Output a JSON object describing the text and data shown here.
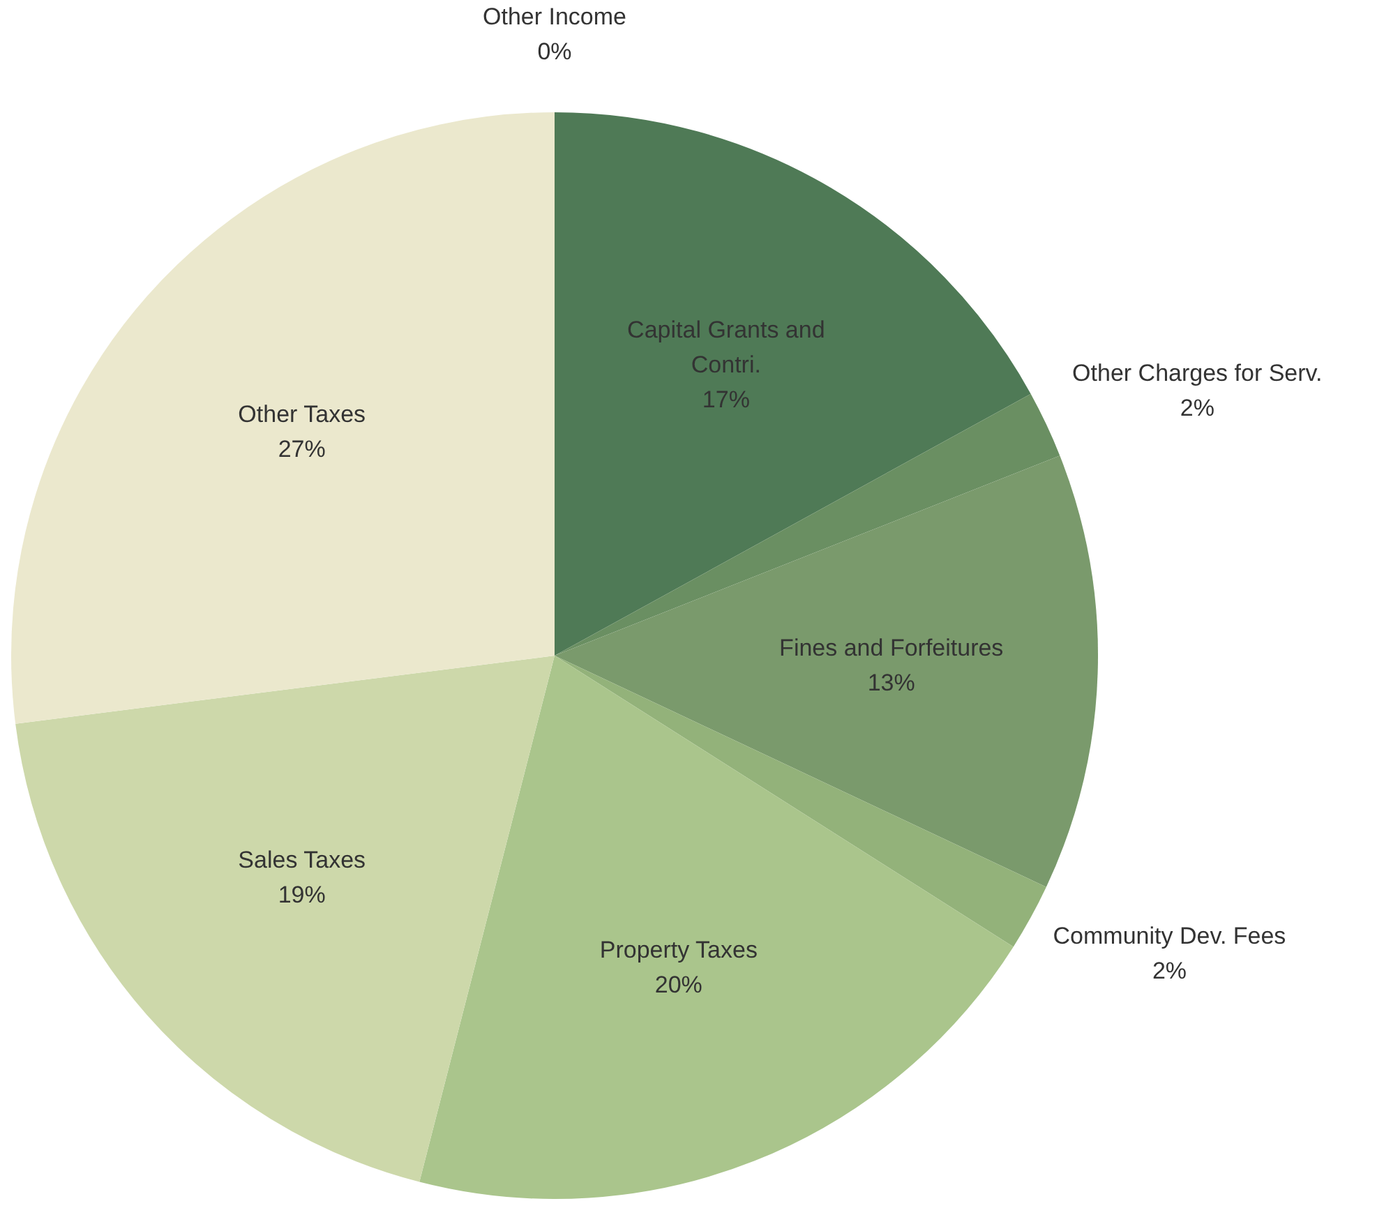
{
  "chart_data": {
    "type": "pie",
    "categories": [
      "Capital Grants and Contri.",
      "Other Charges for Serv.",
      "Fines and Forfeitures",
      "Community Dev. Fees",
      "Property Taxes",
      "Sales Taxes",
      "Other Taxes",
      "Other Income"
    ],
    "values": [
      17,
      2,
      13,
      2,
      20,
      19,
      27,
      0
    ],
    "colors": [
      "#4f7a56",
      "#6a8f62",
      "#7a9a6c",
      "#93b27a",
      "#aac58c",
      "#cdd8aa",
      "#ebe8cd",
      "#f2efd8"
    ],
    "value_labels": [
      "17%",
      "2%",
      "13%",
      "2%",
      "20%",
      "19%",
      "27%",
      "0%"
    ]
  }
}
